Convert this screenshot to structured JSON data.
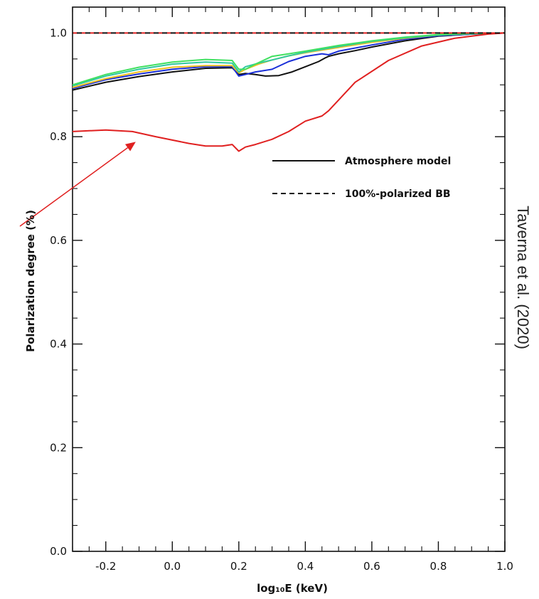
{
  "chart_data": {
    "type": "line",
    "title": "",
    "xlabel": "log₁₀E (keV)",
    "ylabel": "Polarization degree (%)",
    "xlim": [
      -0.3,
      1.0
    ],
    "ylim": [
      0.0,
      1.05
    ],
    "xticks": [
      "-0.2",
      "0.0",
      "0.2",
      "0.4",
      "0.6",
      "0.8",
      "1.0"
    ],
    "yticks": [
      "0.0",
      "0.2",
      "0.4",
      "0.6",
      "0.8",
      "1.0"
    ],
    "legend": {
      "placement": "right",
      "entries": [
        {
          "label": "Atmosphere model",
          "style": "solid"
        },
        {
          "label": "100%-polarized BB",
          "style": "dashed"
        }
      ]
    },
    "annotation": {
      "text": "Taverna et al. (2020)",
      "arrow_color": "#e02020",
      "arrow_tip": {
        "x": -0.11,
        "y": 0.79
      }
    },
    "series": [
      {
        "color": "#e02020",
        "style": "solid",
        "x": [
          -0.3,
          -0.2,
          -0.12,
          -0.05,
          0.05,
          0.1,
          0.15,
          0.18,
          0.2,
          0.22,
          0.25,
          0.3,
          0.35,
          0.4,
          0.45,
          0.47,
          0.55,
          0.65,
          0.75,
          0.85,
          0.95,
          1.0
        ],
        "y": [
          0.81,
          0.813,
          0.81,
          0.8,
          0.787,
          0.782,
          0.782,
          0.785,
          0.772,
          0.78,
          0.785,
          0.795,
          0.81,
          0.83,
          0.84,
          0.85,
          0.905,
          0.947,
          0.975,
          0.99,
          0.998,
          1.0
        ]
      },
      {
        "color": "#111111",
        "style": "solid",
        "x": [
          -0.3,
          -0.2,
          -0.1,
          0.0,
          0.1,
          0.18,
          0.2,
          0.22,
          0.25,
          0.28,
          0.32,
          0.36,
          0.4,
          0.44,
          0.46,
          0.47,
          0.5,
          0.55,
          0.6,
          0.7,
          0.8,
          0.9,
          1.0
        ],
        "y": [
          0.89,
          0.905,
          0.916,
          0.925,
          0.932,
          0.933,
          0.92,
          0.922,
          0.92,
          0.917,
          0.918,
          0.925,
          0.935,
          0.945,
          0.952,
          0.955,
          0.96,
          0.966,
          0.973,
          0.985,
          0.994,
          0.998,
          1.0
        ]
      },
      {
        "color": "#1a2fd8",
        "style": "solid",
        "x": [
          -0.3,
          -0.2,
          -0.1,
          0.0,
          0.1,
          0.18,
          0.2,
          0.22,
          0.25,
          0.3,
          0.35,
          0.4,
          0.45,
          0.47,
          0.5,
          0.6,
          0.7,
          0.8,
          0.9,
          1.0
        ],
        "y": [
          0.893,
          0.91,
          0.921,
          0.93,
          0.935,
          0.935,
          0.917,
          0.92,
          0.925,
          0.93,
          0.945,
          0.955,
          0.96,
          0.958,
          0.965,
          0.977,
          0.988,
          0.995,
          0.998,
          1.0
        ]
      },
      {
        "color": "#f0c020",
        "style": "solid",
        "x": [
          -0.3,
          -0.2,
          -0.1,
          0.0,
          0.1,
          0.18,
          0.2,
          0.22,
          0.26,
          0.3,
          0.35,
          0.4,
          0.5,
          0.6,
          0.7,
          0.8,
          0.9,
          1.0
        ],
        "y": [
          0.895,
          0.912,
          0.925,
          0.934,
          0.937,
          0.937,
          0.923,
          0.93,
          0.94,
          0.948,
          0.956,
          0.962,
          0.972,
          0.982,
          0.99,
          0.996,
          0.999,
          1.0
        ]
      },
      {
        "color": "#30c8a0",
        "style": "solid",
        "x": [
          -0.3,
          -0.2,
          -0.1,
          0.0,
          0.1,
          0.18,
          0.2,
          0.22,
          0.26,
          0.3,
          0.35,
          0.4,
          0.5,
          0.6,
          0.7,
          0.8,
          0.9,
          1.0
        ],
        "y": [
          0.898,
          0.917,
          0.93,
          0.94,
          0.944,
          0.942,
          0.925,
          0.935,
          0.942,
          0.948,
          0.956,
          0.963,
          0.974,
          0.984,
          0.991,
          0.996,
          0.999,
          1.0
        ]
      },
      {
        "color": "#40e060",
        "style": "solid",
        "x": [
          -0.3,
          -0.2,
          -0.1,
          0.0,
          0.1,
          0.18,
          0.2,
          0.22,
          0.25,
          0.3,
          0.35,
          0.4,
          0.5,
          0.6,
          0.7,
          0.8,
          0.9,
          1.0
        ],
        "y": [
          0.9,
          0.92,
          0.934,
          0.944,
          0.949,
          0.947,
          0.93,
          0.93,
          0.94,
          0.955,
          0.96,
          0.965,
          0.976,
          0.985,
          0.992,
          0.997,
          0.999,
          1.0
        ]
      },
      {
        "color": "#e02020",
        "style": "dashed",
        "x": [
          -0.3,
          1.0
        ],
        "y": [
          1.0,
          1.0
        ]
      },
      {
        "color": "#111111",
        "style": "dashed",
        "x": [
          -0.3,
          1.0
        ],
        "y": [
          1.0,
          1.0
        ]
      }
    ]
  }
}
